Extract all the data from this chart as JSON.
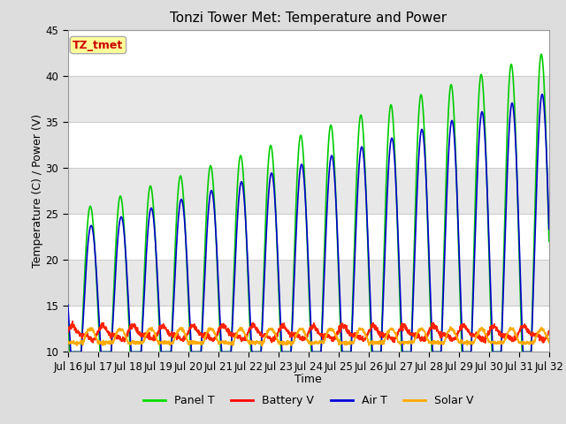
{
  "title": "Tonzi Tower Met: Temperature and Power",
  "xlabel": "Time",
  "ylabel": "Temperature (C) / Power (V)",
  "ylim": [
    10,
    45
  ],
  "annotation_text": "TZ_tmet",
  "annotation_color": "#cc0000",
  "annotation_bg": "#ffff99",
  "annotation_border": "#aaaaaa",
  "legend_entries": [
    "Panel T",
    "Battery V",
    "Air T",
    "Solar V"
  ],
  "legend_colors": [
    "#00dd00",
    "#ff0000",
    "#0000dd",
    "#ffaa00"
  ],
  "n_days": 16,
  "start_day": 16,
  "yticks": [
    10,
    15,
    20,
    25,
    30,
    35,
    40,
    45
  ],
  "band_colors": [
    "#f0f0f0",
    "#e0e0e0"
  ]
}
